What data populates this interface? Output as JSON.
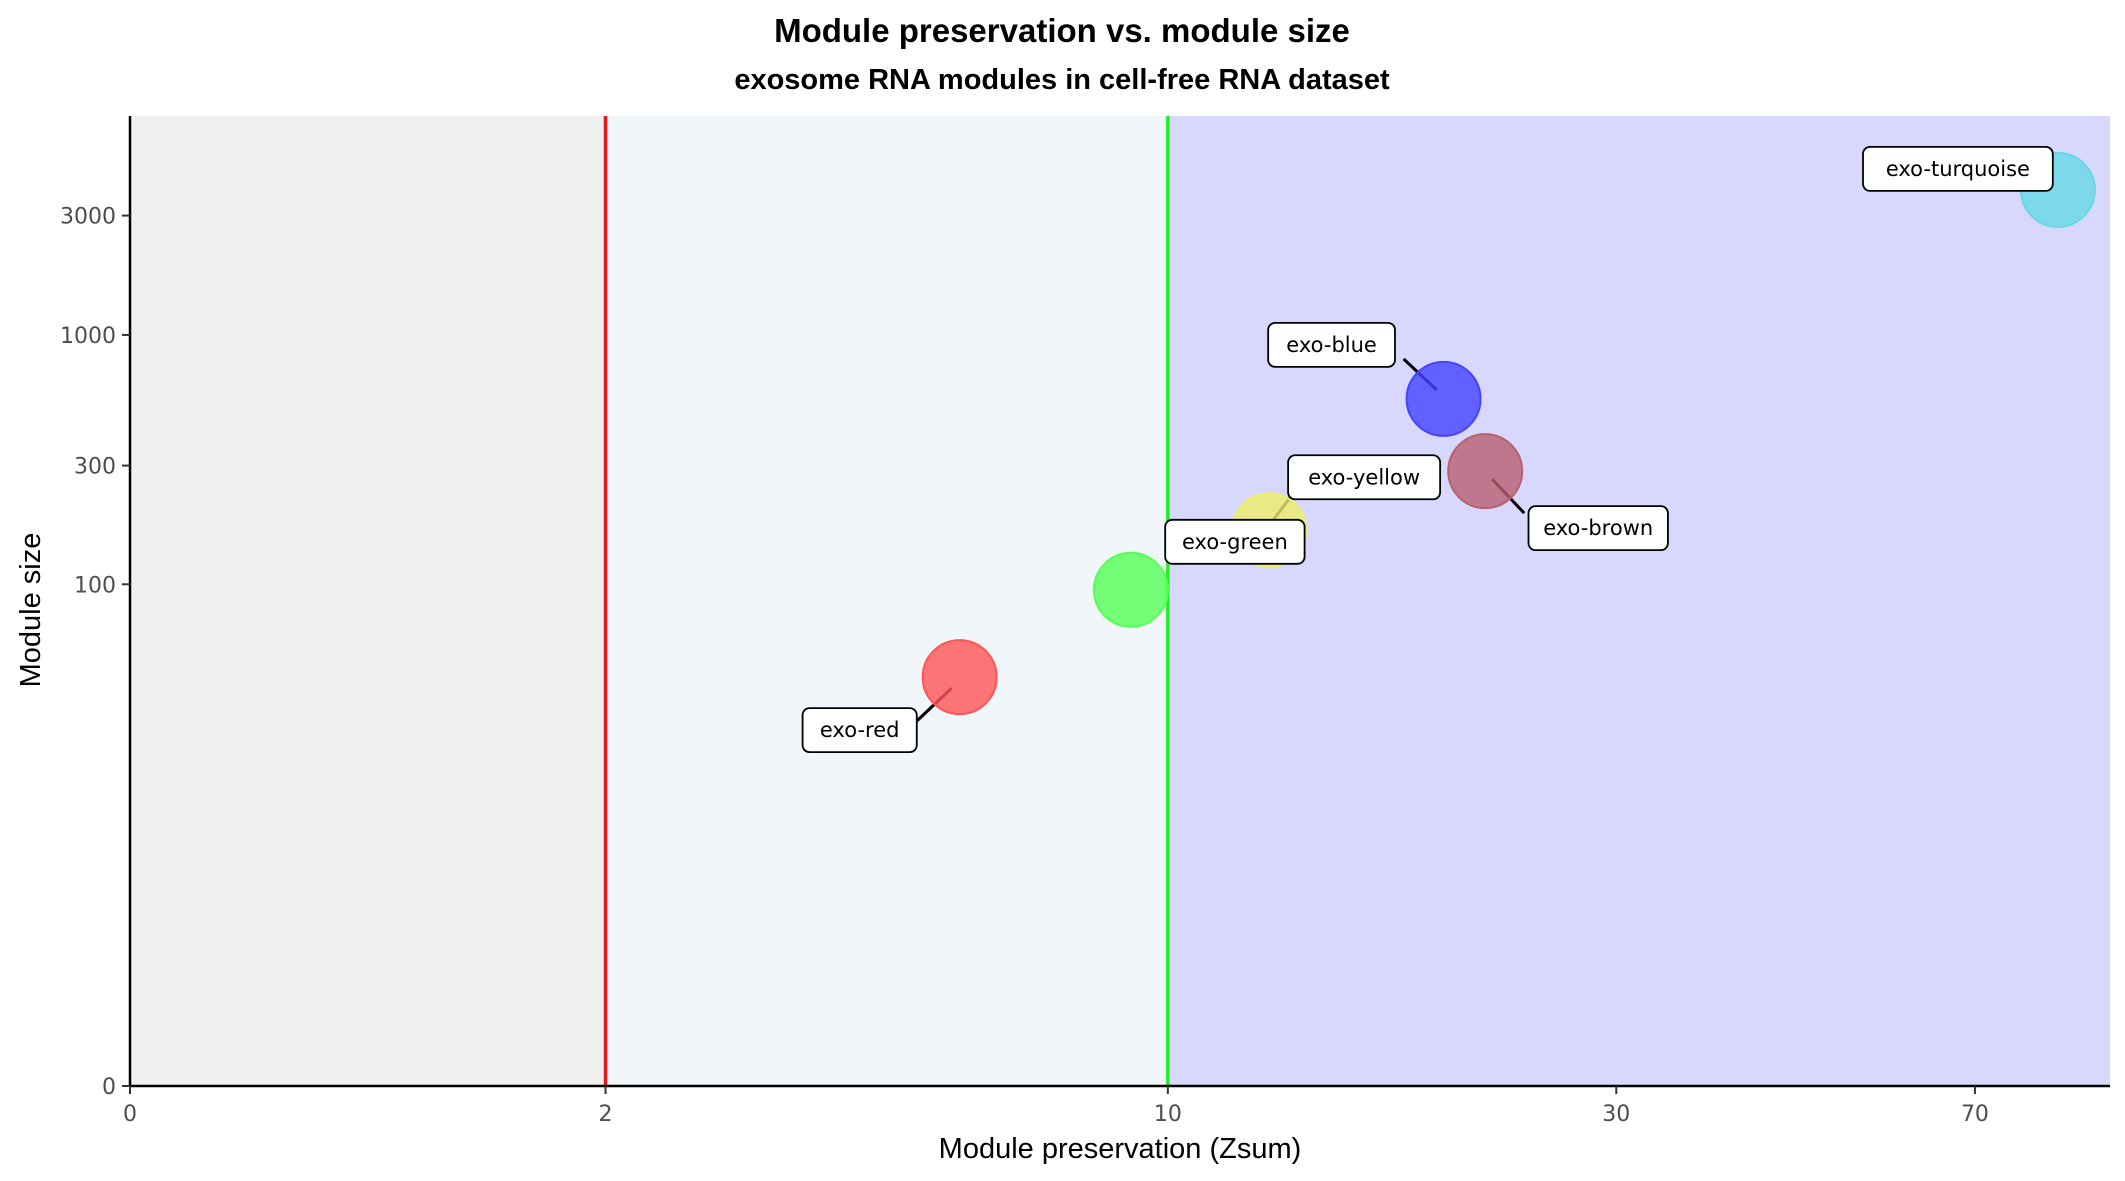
{
  "chart_data": {
    "type": "scatter",
    "title": "Module preservation vs. module size",
    "subtitle": "exosome RNA modules in cell-free RNA dataset",
    "xlabel": "Module preservation (Zsum)",
    "ylabel": "Module size",
    "x_scale": "log1p",
    "y_scale": "log1p",
    "xlim": [
      0,
      96
    ],
    "ylim": [
      0,
      7500
    ],
    "x_ticks": [
      0,
      2,
      10,
      30,
      70
    ],
    "y_ticks": [
      0,
      100,
      300,
      1000,
      3000
    ],
    "thresholds": [
      {
        "x": 2,
        "color": "#e41a1c"
      },
      {
        "x": 10,
        "color": "#22ee22"
      }
    ],
    "regions": [
      {
        "from": 0,
        "to": 2,
        "color": "#f0f0f0"
      },
      {
        "from": 2,
        "to": 10,
        "color": "#f1f6fa"
      },
      {
        "from": 10,
        "to": 96,
        "color": "#d8d8ff"
      }
    ],
    "grid": false,
    "legend": "none",
    "points": [
      {
        "label": "exo-red",
        "x": 5.8,
        "y": 42,
        "color": "#ff5555"
      },
      {
        "label": "exo-green",
        "x": 9.1,
        "y": 95,
        "color": "#55ff55"
      },
      {
        "label": "exo-yellow",
        "x": 12.9,
        "y": 165,
        "color": "#eeee66"
      },
      {
        "label": "exo-blue",
        "x": 19.8,
        "y": 555,
        "color": "#4444ff"
      },
      {
        "label": "exo-brown",
        "x": 21.9,
        "y": 285,
        "color": "#b86070"
      },
      {
        "label": "exo-turquoise",
        "x": 85,
        "y": 3800,
        "color": "#66d8e4"
      }
    ]
  }
}
